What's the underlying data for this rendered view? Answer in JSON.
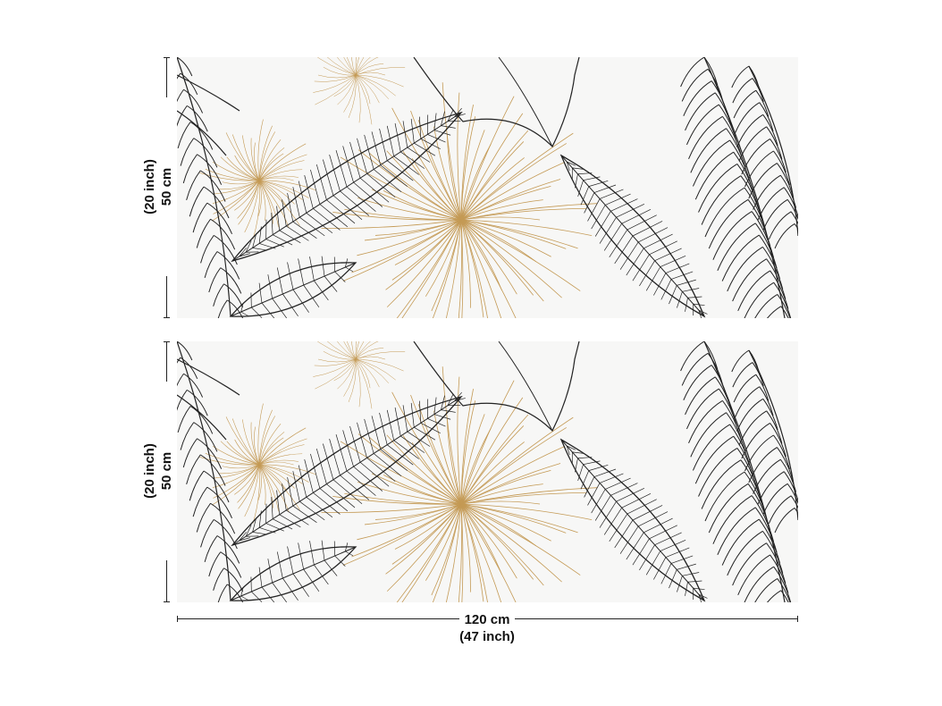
{
  "height_dimension": {
    "primary": "50 cm",
    "secondary": "(20 inch)"
  },
  "width_dimension": {
    "primary": "120 cm",
    "secondary": "(47 inch)"
  },
  "panels": [
    "top-panel",
    "bottom-panel"
  ],
  "colors": {
    "ink": "#222222",
    "gold": "#c49a55",
    "paper": "#f7f7f6"
  }
}
